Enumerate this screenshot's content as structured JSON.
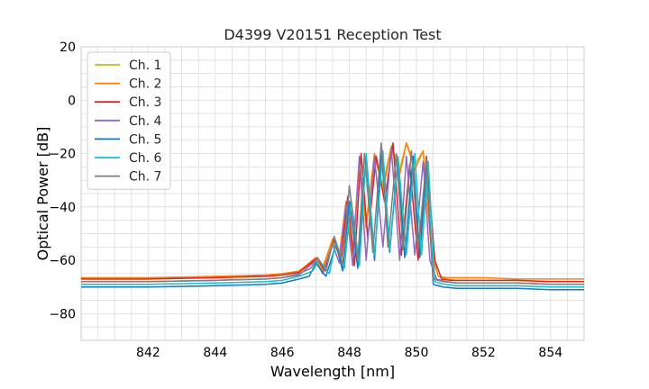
{
  "chart_data": {
    "type": "line",
    "title": "D4399 V20151 Reception Test",
    "xlabel": "Wavelength [nm]",
    "ylabel": "Optical Power [dB]",
    "xlim": [
      840.0,
      855.0
    ],
    "ylim": [
      -90,
      20
    ],
    "x_ticks": [
      842,
      844,
      846,
      848,
      850,
      852,
      854
    ],
    "y_ticks": [
      -80,
      -60,
      -40,
      -20,
      0,
      20
    ],
    "x_minor_step": 0.5,
    "y_minor_step": 5,
    "grid": true,
    "legend_position": "top-left",
    "series": [
      {
        "name": "Ch. 1",
        "color": "#bcbd22",
        "x": [
          840.0,
          842.0,
          844.0,
          845.5,
          846.0,
          846.5,
          847.0,
          847.2,
          847.5,
          847.7,
          847.9,
          848.1,
          848.3,
          848.5,
          848.75,
          849.0,
          849.25,
          849.5,
          849.7,
          849.95,
          850.2,
          850.45,
          850.65,
          850.9,
          851.2,
          852.0,
          853.0,
          854.0,
          855.0
        ],
        "y": [
          -67,
          -67,
          -66.5,
          -66,
          -65.5,
          -64,
          -60,
          -64,
          -53,
          -58,
          -40,
          -58,
          -22,
          -46,
          -20,
          -32,
          -17,
          -26,
          -16,
          -24,
          -19,
          -56,
          -66,
          -67,
          -67.5,
          -67.5,
          -67.5,
          -68,
          -68
        ]
      },
      {
        "name": "Ch. 2",
        "color": "#ff7f0e",
        "x": [
          840.0,
          842.0,
          844.0,
          845.5,
          846.0,
          846.5,
          847.0,
          847.2,
          847.5,
          847.7,
          847.9,
          848.1,
          848.3,
          848.5,
          848.75,
          849.0,
          849.25,
          849.5,
          849.7,
          849.95,
          850.2,
          850.45,
          850.65,
          850.9,
          851.2,
          852.0,
          853.0,
          854.0,
          855.0
        ],
        "y": [
          -66.5,
          -66.5,
          -66,
          -65.5,
          -65,
          -64,
          -59,
          -63,
          -52,
          -58,
          -38,
          -58,
          -21,
          -48,
          -20,
          -34,
          -18,
          -28,
          -16,
          -26,
          -19,
          -57,
          -66,
          -66.5,
          -66.5,
          -66.5,
          -67,
          -67,
          -67
        ]
      },
      {
        "name": "Ch. 3",
        "color": "#d62728",
        "x": [
          840.0,
          842.0,
          844.0,
          845.5,
          846.0,
          846.5,
          847.05,
          847.25,
          847.55,
          847.75,
          847.95,
          848.15,
          848.35,
          848.55,
          848.8,
          849.05,
          849.3,
          849.55,
          849.8,
          850.05,
          850.3,
          850.55,
          850.75,
          851.0,
          851.3,
          852.0,
          853.0,
          854.0,
          855.0
        ],
        "y": [
          -67,
          -67,
          -66.5,
          -66,
          -65.5,
          -64.5,
          -59,
          -64,
          -52,
          -61,
          -36,
          -62,
          -20,
          -52,
          -21,
          -38,
          -16,
          -58,
          -24,
          -60,
          -21,
          -60,
          -67,
          -67.5,
          -67.5,
          -67.5,
          -67.5,
          -68,
          -68
        ]
      },
      {
        "name": "Ch. 4",
        "color": "#9467bd",
        "x": [
          840.0,
          842.0,
          844.0,
          845.5,
          846.0,
          846.5,
          847.0,
          847.2,
          847.5,
          847.7,
          847.9,
          848.1,
          848.3,
          848.5,
          848.75,
          849.0,
          849.25,
          849.5,
          849.7,
          849.95,
          850.2,
          850.4,
          850.6,
          850.9,
          851.2,
          852.0,
          853.0,
          854.0,
          855.0
        ],
        "y": [
          -68,
          -68,
          -67.5,
          -67,
          -66.5,
          -65.5,
          -60,
          -65,
          -54,
          -61,
          -39,
          -62,
          -21,
          -60,
          -21,
          -55,
          -18,
          -60,
          -21,
          -58,
          -23,
          -60,
          -67,
          -68,
          -68.5,
          -68.5,
          -68.5,
          -69,
          -69
        ]
      },
      {
        "name": "Ch. 5",
        "color": "#1f77b4",
        "x": [
          840.0,
          842.0,
          844.0,
          845.5,
          846.0,
          846.5,
          846.8,
          847.0,
          847.3,
          847.6,
          847.8,
          848.0,
          848.25,
          848.5,
          848.75,
          848.95,
          849.2,
          849.45,
          849.65,
          849.9,
          850.1,
          850.3,
          850.5,
          850.8,
          851.2,
          852.0,
          853.0,
          854.0,
          855.0
        ],
        "y": [
          -70,
          -70,
          -69.5,
          -69,
          -68.5,
          -67,
          -66,
          -61,
          -66,
          -54,
          -64,
          -38,
          -63,
          -21,
          -60,
          -20,
          -57,
          -22,
          -59,
          -21,
          -59,
          -24,
          -69,
          -70,
          -70.5,
          -70.5,
          -70.5,
          -71,
          -71
        ]
      },
      {
        "name": "Ch. 6",
        "color": "#17becf",
        "x": [
          840.0,
          842.0,
          844.0,
          845.5,
          846.0,
          846.5,
          846.9,
          847.1,
          847.4,
          847.6,
          847.85,
          848.05,
          848.3,
          848.5,
          848.75,
          849.0,
          849.2,
          849.45,
          849.7,
          849.95,
          850.15,
          850.35,
          850.55,
          850.85,
          851.2,
          852.0,
          853.0,
          854.0,
          855.0
        ],
        "y": [
          -69,
          -69,
          -68.5,
          -68,
          -67.5,
          -66,
          -64,
          -60,
          -65,
          -53,
          -63,
          -37,
          -62,
          -20,
          -58,
          -19,
          -56,
          -21,
          -58,
          -20,
          -58,
          -23,
          -68,
          -69,
          -69.5,
          -69.5,
          -69.5,
          -70,
          -70
        ]
      },
      {
        "name": "Ch. 7",
        "color": "#7f7f7f",
        "x": [
          840.0,
          842.0,
          844.0,
          845.5,
          846.0,
          846.5,
          846.85,
          847.05,
          847.3,
          847.55,
          847.8,
          848.0,
          848.25,
          848.45,
          848.7,
          848.95,
          849.15,
          849.4,
          849.6,
          849.85,
          850.05,
          850.3,
          850.5,
          850.8,
          851.2,
          852.0,
          853.0,
          854.0,
          855.0
        ],
        "y": [
          -68,
          -68,
          -67.5,
          -67,
          -66.5,
          -65,
          -63,
          -59,
          -64,
          -51,
          -62,
          -32,
          -60,
          -20,
          -57,
          -16,
          -55,
          -20,
          -56,
          -19,
          -56,
          -22,
          -67,
          -68,
          -68.5,
          -68.5,
          -68.5,
          -69,
          -69
        ]
      }
    ]
  }
}
